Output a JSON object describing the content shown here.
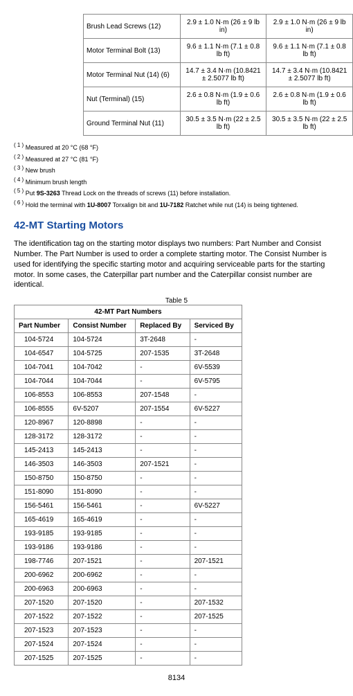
{
  "torque_rows": [
    {
      "label": "Brush Lead Screws (12)",
      "v1": "2.9 ± 1.0 N·m (26 ± 9 lb in)",
      "v2": "2.9 ± 1.0 N·m (26 ± 9 lb in)"
    },
    {
      "label": "Motor Terminal Bolt (13)",
      "v1": "9.6 ± 1.1 N·m (7.1 ± 0.8 lb ft)",
      "v2": "9.6 ± 1.1 N·m (7.1 ± 0.8 lb ft)"
    },
    {
      "label": "Motor Terminal Nut (14)  (6)",
      "v1": "14.7 ± 3.4 N·m (10.8421 ± 2.5077 lb ft)",
      "v2": "14.7 ± 3.4 N·m (10.8421 ± 2.5077 lb ft)"
    },
    {
      "label": "Nut (Terminal) (15)",
      "v1": "2.6 ± 0.8 N·m (1.9 ± 0.6 lb ft)",
      "v2": "2.6 ± 0.8 N·m (1.9 ± 0.6 lb ft)"
    },
    {
      "label": "Ground Terminal Nut (11)",
      "v1": "30.5 ± 3.5 N·m (22 ± 2.5 lb ft)",
      "v2": "30.5 ± 3.5 N·m (22 ± 2.5 lb ft)"
    }
  ],
  "footnotes": {
    "n1": "Measured at 20 °C (68 °F)",
    "n2": "Measured at 27 °C (81 °F)",
    "n3": "New brush",
    "n4": "Minimum brush length",
    "n5_pre": "Put ",
    "n5_bold": "9S-3263",
    "n5_post": " Thread Lock on the threads of screws (11) before installation.",
    "n6_pre": "Hold the terminal with ",
    "n6_b1": "1U-8007",
    "n6_mid": " Torxalign bit and ",
    "n6_b2": "1U-7182",
    "n6_post": " Ratchet while nut (14) is being tightened."
  },
  "section_title": "42-MT Starting Motors",
  "intro_text": "The identification tag on the starting motor displays two numbers: Part Number and Consist Number. The Part Number is used to order a complete starting motor. The Consist Number is used for identifying the specific starting motor and acquiring serviceable parts for the starting motor. In some cases, the Caterpillar part number and the Caterpillar consist number are identical.",
  "parts_table": {
    "caption": "Table 5",
    "title": "42-MT Part Numbers",
    "headers": [
      "Part Number",
      "Consist Number",
      "Replaced By",
      "Serviced By"
    ],
    "rows": [
      [
        "104-5724",
        "104-5724",
        "3T-2648",
        "-"
      ],
      [
        "104-6547",
        "104-5725",
        "207-1535",
        "3T-2648"
      ],
      [
        "104-7041",
        "104-7042",
        "-",
        "6V-5539"
      ],
      [
        "104-7044",
        "104-7044",
        "-",
        "6V-5795"
      ],
      [
        "106-8553",
        "106-8553",
        "207-1548",
        "-"
      ],
      [
        "106-8555",
        "6V-5207",
        "207-1554",
        "6V-5227"
      ],
      [
        "120-8967",
        "120-8898",
        "-",
        "-"
      ],
      [
        "128-3172",
        "128-3172",
        "-",
        "-"
      ],
      [
        "145-2413",
        "145-2413",
        "-",
        "-"
      ],
      [
        "146-3503",
        "146-3503",
        "207-1521",
        "-"
      ],
      [
        "150-8750",
        "150-8750",
        "-",
        "-"
      ],
      [
        "151-8090",
        "151-8090",
        "-",
        "-"
      ],
      [
        "156-5461",
        "156-5461",
        "-",
        "6V-5227"
      ],
      [
        "165-4619",
        "165-4619",
        "-",
        "-"
      ],
      [
        "193-9185",
        "193-9185",
        "-",
        "-"
      ],
      [
        "193-9186",
        "193-9186",
        "-",
        "-"
      ],
      [
        "198-7746",
        "207-1521",
        "-",
        "207-1521"
      ],
      [
        "200-6962",
        "200-6962",
        "-",
        "-"
      ],
      [
        "200-6963",
        "200-6963",
        "-",
        "-"
      ],
      [
        "207-1520",
        "207-1520",
        "-",
        "207-1532"
      ],
      [
        "207-1522",
        "207-1522",
        "-",
        "207-1525"
      ],
      [
        "207-1523",
        "207-1523",
        "-",
        "-"
      ],
      [
        "207-1524",
        "207-1524",
        "-",
        "-"
      ],
      [
        "207-1525",
        "207-1525",
        "-",
        "-"
      ]
    ]
  },
  "page_number": "8134"
}
